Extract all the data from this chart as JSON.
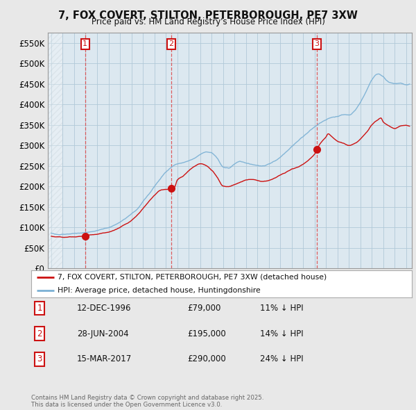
{
  "title": "7, FOX COVERT, STILTON, PETERBOROUGH, PE7 3XW",
  "subtitle": "Price paid vs. HM Land Registry's House Price Index (HPI)",
  "ylim": [
    0,
    575000
  ],
  "yticks": [
    0,
    50000,
    100000,
    150000,
    200000,
    250000,
    300000,
    350000,
    400000,
    450000,
    500000,
    550000
  ],
  "ytick_labels": [
    "£0",
    "£50K",
    "£100K",
    "£150K",
    "£200K",
    "£250K",
    "£300K",
    "£350K",
    "£400K",
    "£450K",
    "£500K",
    "£550K"
  ],
  "xlim_start": 1993.7,
  "xlim_end": 2025.5,
  "bg_color": "#e8e8e8",
  "plot_bg_color": "#dce8f0",
  "grid_color": "#b0c8d8",
  "hpi_color": "#7ab0d4",
  "price_color": "#cc1111",
  "hatch_color": "#c0ccd4",
  "legend_entries": [
    "7, FOX COVERT, STILTON, PETERBOROUGH, PE7 3XW (detached house)",
    "HPI: Average price, detached house, Huntingdonshire"
  ],
  "sales": [
    {
      "num": 1,
      "date_x": 1996.95,
      "price": 79000,
      "date_str": "12-DEC-1996",
      "price_str": "£79,000",
      "pct_str": "11% ↓ HPI"
    },
    {
      "num": 2,
      "date_x": 2004.49,
      "price": 195000,
      "date_str": "28-JUN-2004",
      "price_str": "£195,000",
      "pct_str": "14% ↓ HPI"
    },
    {
      "num": 3,
      "date_x": 2017.21,
      "price": 290000,
      "date_str": "15-MAR-2017",
      "price_str": "£290,000",
      "pct_str": "24% ↓ HPI"
    }
  ],
  "footer": "Contains HM Land Registry data © Crown copyright and database right 2025.\nThis data is licensed under the Open Government Licence v3.0."
}
